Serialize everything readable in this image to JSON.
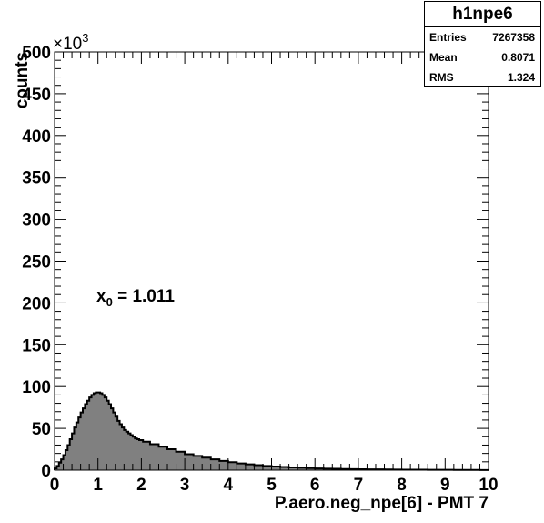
{
  "chart_data": {
    "type": "bar",
    "title": "",
    "xlabel": "P.aero.neg_npe[6] - PMT 7",
    "ylabel": "counts",
    "y_multiplier": "×10",
    "y_multiplier_exp": "3",
    "xlim": [
      0,
      10
    ],
    "ylim": [
      0,
      500
    ],
    "x_ticks": [
      "0",
      "1",
      "2",
      "3",
      "4",
      "5",
      "6",
      "7",
      "8",
      "9",
      "10"
    ],
    "y_ticks": [
      "0",
      "50",
      "100",
      "150",
      "200",
      "250",
      "300",
      "350",
      "400",
      "450",
      "500"
    ],
    "fill_color": "#808080",
    "line_color": "#000000",
    "bin_width": 0.05,
    "x": [
      0.025,
      0.075,
      0.125,
      0.175,
      0.225,
      0.275,
      0.325,
      0.375,
      0.425,
      0.475,
      0.525,
      0.575,
      0.625,
      0.675,
      0.725,
      0.775,
      0.825,
      0.875,
      0.925,
      0.975,
      1.025,
      1.075,
      1.125,
      1.175,
      1.225,
      1.275,
      1.325,
      1.375,
      1.425,
      1.475,
      1.525,
      1.575,
      1.625,
      1.675,
      1.725,
      1.775,
      1.825,
      1.875,
      1.925,
      1.975,
      2.1,
      2.3,
      2.5,
      2.7,
      2.9,
      3.1,
      3.3,
      3.5,
      3.7,
      3.9,
      4.1,
      4.3,
      4.5,
      4.7,
      4.9,
      5.1,
      5.3,
      5.5,
      5.7,
      5.9,
      6.1,
      6.3,
      6.5,
      6.7,
      6.9,
      7.1,
      7.3,
      7.5,
      7.7,
      7.9,
      8.1,
      8.3,
      8.5,
      8.7,
      8.9,
      9.1,
      9.3,
      9.5,
      9.7,
      9.9
    ],
    "values": [
      2,
      5,
      9,
      13,
      18,
      24,
      30,
      37,
      44,
      51,
      57,
      63,
      69,
      74,
      79,
      83,
      87,
      90,
      92,
      93,
      93,
      92,
      90,
      87,
      83,
      79,
      74,
      69,
      64,
      59,
      55,
      51,
      48,
      46,
      44,
      42,
      40,
      38,
      37,
      36,
      34,
      31,
      28,
      25,
      22,
      19,
      17,
      15,
      13,
      11,
      9.5,
      8,
      7,
      6,
      5,
      4.3,
      3.8,
      3.2,
      2.8,
      2.4,
      2.1,
      1.8,
      1.6,
      1.4,
      1.2,
      1.1,
      1.0,
      0.9,
      0.8,
      0.7,
      0.6,
      0.55,
      0.5,
      0.45,
      0.4,
      0.35,
      0.3,
      0.3,
      0.25,
      0.2
    ],
    "annotation": {
      "text": "x",
      "sub": "0",
      "value": " = 1.011"
    },
    "stats": {
      "title": "h1npe6",
      "rows": [
        {
          "label": "Entries",
          "value": "7267358"
        },
        {
          "label": "Mean",
          "value": "0.8071"
        },
        {
          "label": "RMS",
          "value": "1.324"
        }
      ]
    }
  }
}
